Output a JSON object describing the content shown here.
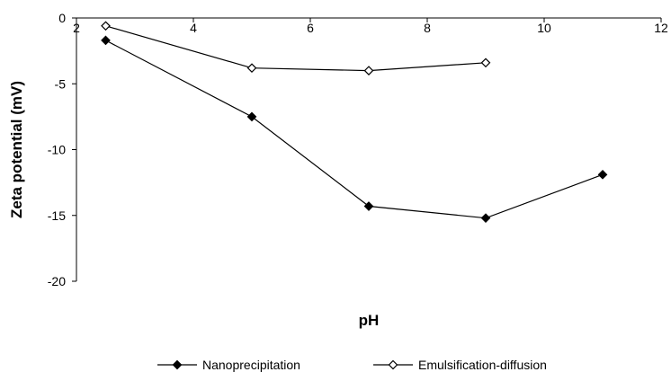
{
  "chart_data": {
    "type": "line",
    "title": "",
    "xlabel": "pH",
    "ylabel": "Zeta potential (mV)",
    "xlim": [
      2,
      12
    ],
    "ylim": [
      -20,
      0
    ],
    "x_ticks": [
      2,
      4,
      6,
      8,
      10,
      12
    ],
    "y_ticks": [
      0,
      -5,
      -10,
      -15,
      -20
    ],
    "grid": false,
    "legend_position": "bottom",
    "series": [
      {
        "name": "Nanoprecipitation",
        "marker": "filled-diamond",
        "color": "#000000",
        "x": [
          2.5,
          5,
          7,
          9,
          11
        ],
        "y": [
          -1.7,
          -7.5,
          -14.3,
          -15.2,
          -11.9
        ]
      },
      {
        "name": "Emulsification-diffusion",
        "marker": "open-diamond",
        "color": "#000000",
        "x": [
          2.5,
          5,
          7,
          9
        ],
        "y": [
          -0.6,
          -3.8,
          -4.0,
          -3.4
        ]
      }
    ]
  }
}
